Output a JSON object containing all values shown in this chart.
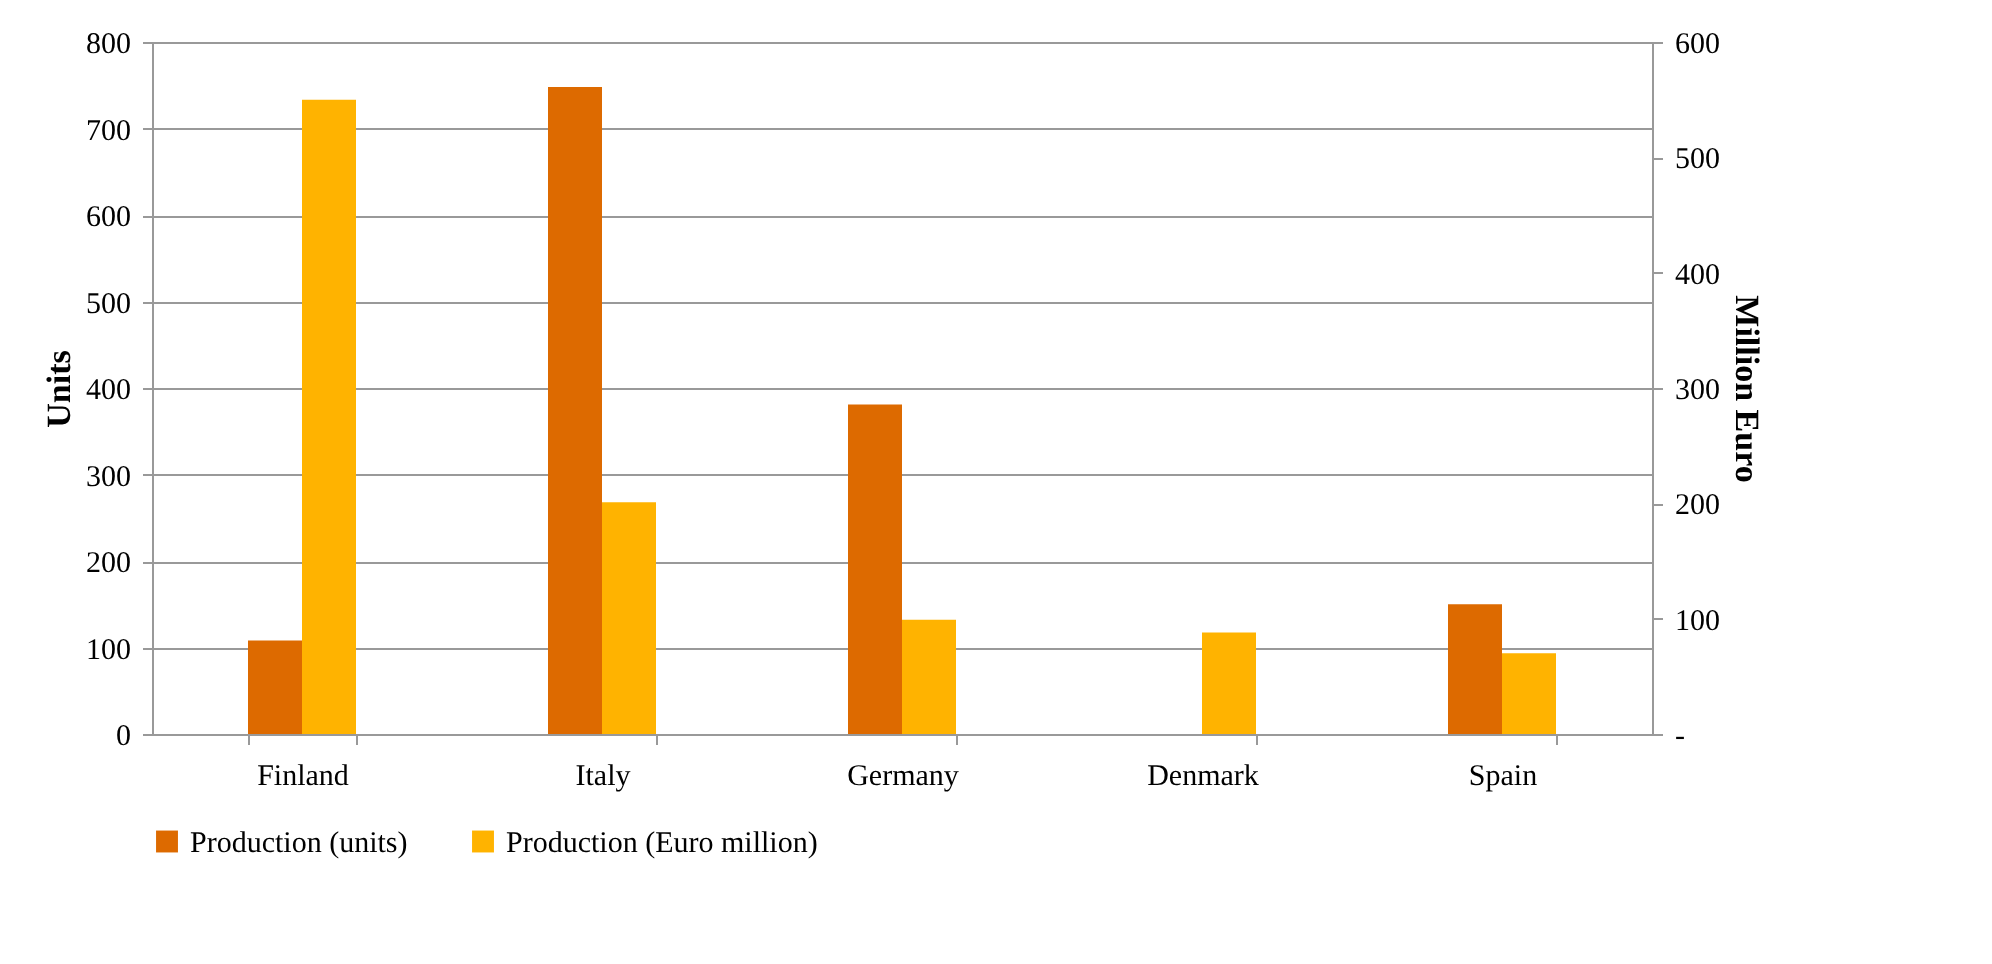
{
  "chart_data": {
    "type": "bar",
    "categories": [
      "Finland",
      "Italy",
      "Germany",
      "Denmark",
      "Spain"
    ],
    "ylabel": "Units",
    "y2label": "Million Euro",
    "ylim": [
      0,
      800
    ],
    "yticks": [
      0,
      100,
      200,
      300,
      400,
      500,
      600,
      700,
      800
    ],
    "y2lim": [
      0,
      600
    ],
    "y2ticks": [
      {
        "value": 0,
        "label": "-"
      },
      100,
      200,
      300,
      400,
      500,
      600
    ],
    "grid": "y",
    "legend": "bottom",
    "series": [
      {
        "name": "Production (units)",
        "color": "#dd6a00",
        "values": [
          108,
          748,
          381,
          null,
          150
        ]
      },
      {
        "name": "Production (Euro million)",
        "color": "#ffb300",
        "axis": "y2",
        "values": [
          550,
          201,
          99,
          88,
          70
        ]
      }
    ]
  }
}
